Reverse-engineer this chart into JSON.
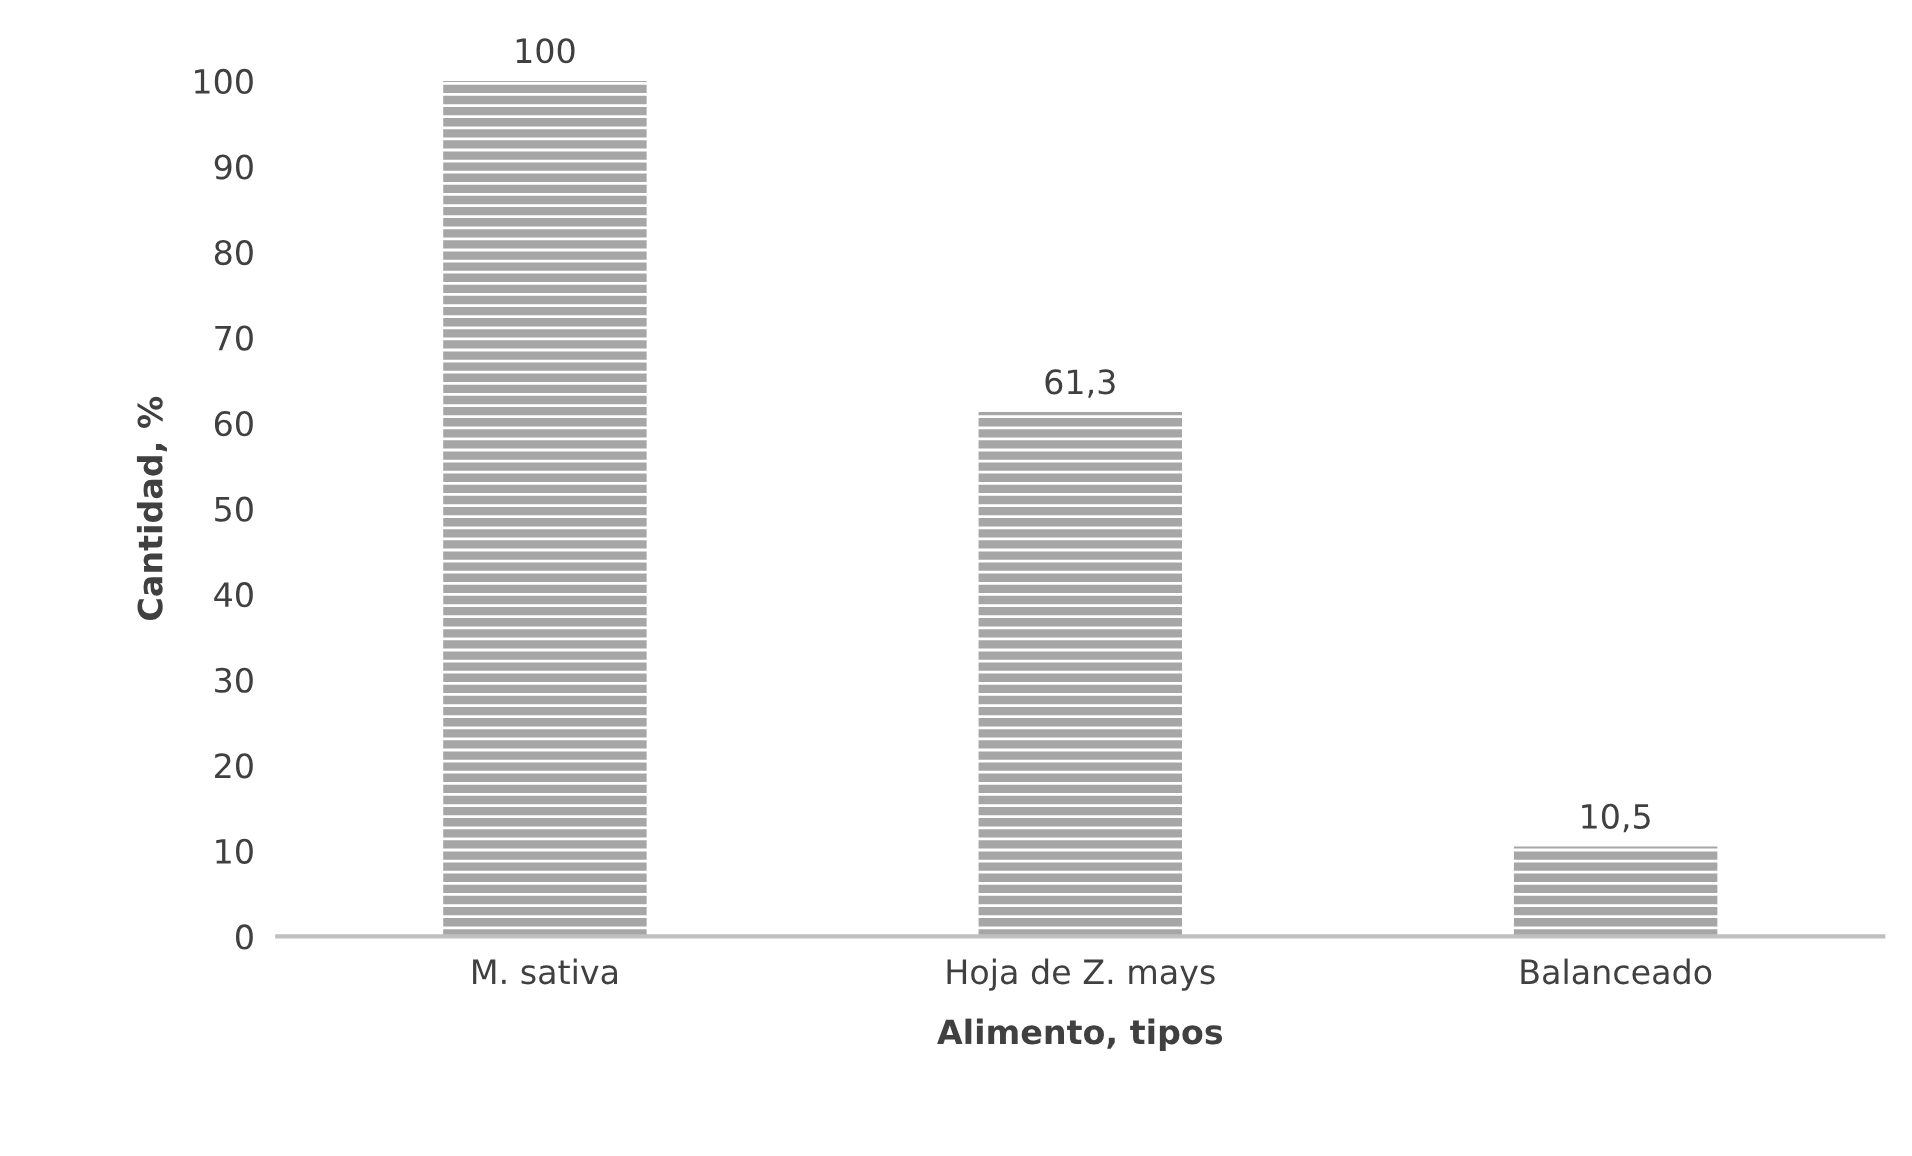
{
  "chart_data": {
    "type": "bar",
    "xlabel": "Alimento, tipos",
    "ylabel": "Cantidad, %",
    "categories": [
      "M. sativa",
      "Hoja de Z. mays",
      "Balanceado"
    ],
    "values": [
      100,
      61.3,
      10.5
    ],
    "value_labels": [
      "100",
      "61,3",
      "10,5"
    ],
    "color": "#a6a6a6",
    "ylim": [
      0,
      100
    ],
    "yticks": [
      0,
      10,
      20,
      30,
      40,
      50,
      60,
      70,
      80,
      90,
      100
    ],
    "grid": false,
    "legend": false
  }
}
